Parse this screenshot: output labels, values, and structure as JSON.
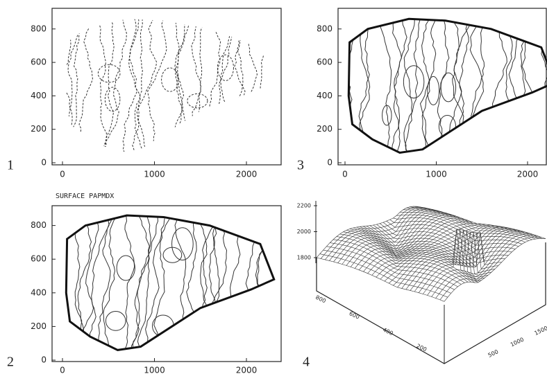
{
  "panels": [
    {
      "label": "1",
      "xticks": [
        0,
        1000,
        2000
      ],
      "yticks": [
        0,
        200,
        400,
        600,
        800
      ]
    },
    {
      "label": "3",
      "xticks": [
        0,
        1000,
        2000
      ],
      "yticks": [
        0,
        200,
        400,
        600,
        800
      ]
    },
    {
      "label": "2",
      "title": "SURFACE PAPMDX",
      "xticks": [
        0,
        1000,
        2000
      ],
      "yticks": [
        0,
        200,
        400,
        600,
        800
      ]
    },
    {
      "label": "4",
      "zticks": [
        1800,
        2000,
        2200
      ],
      "yticks": [
        800,
        600,
        400,
        200
      ],
      "xticks": [
        500,
        1000,
        1500
      ]
    }
  ]
}
